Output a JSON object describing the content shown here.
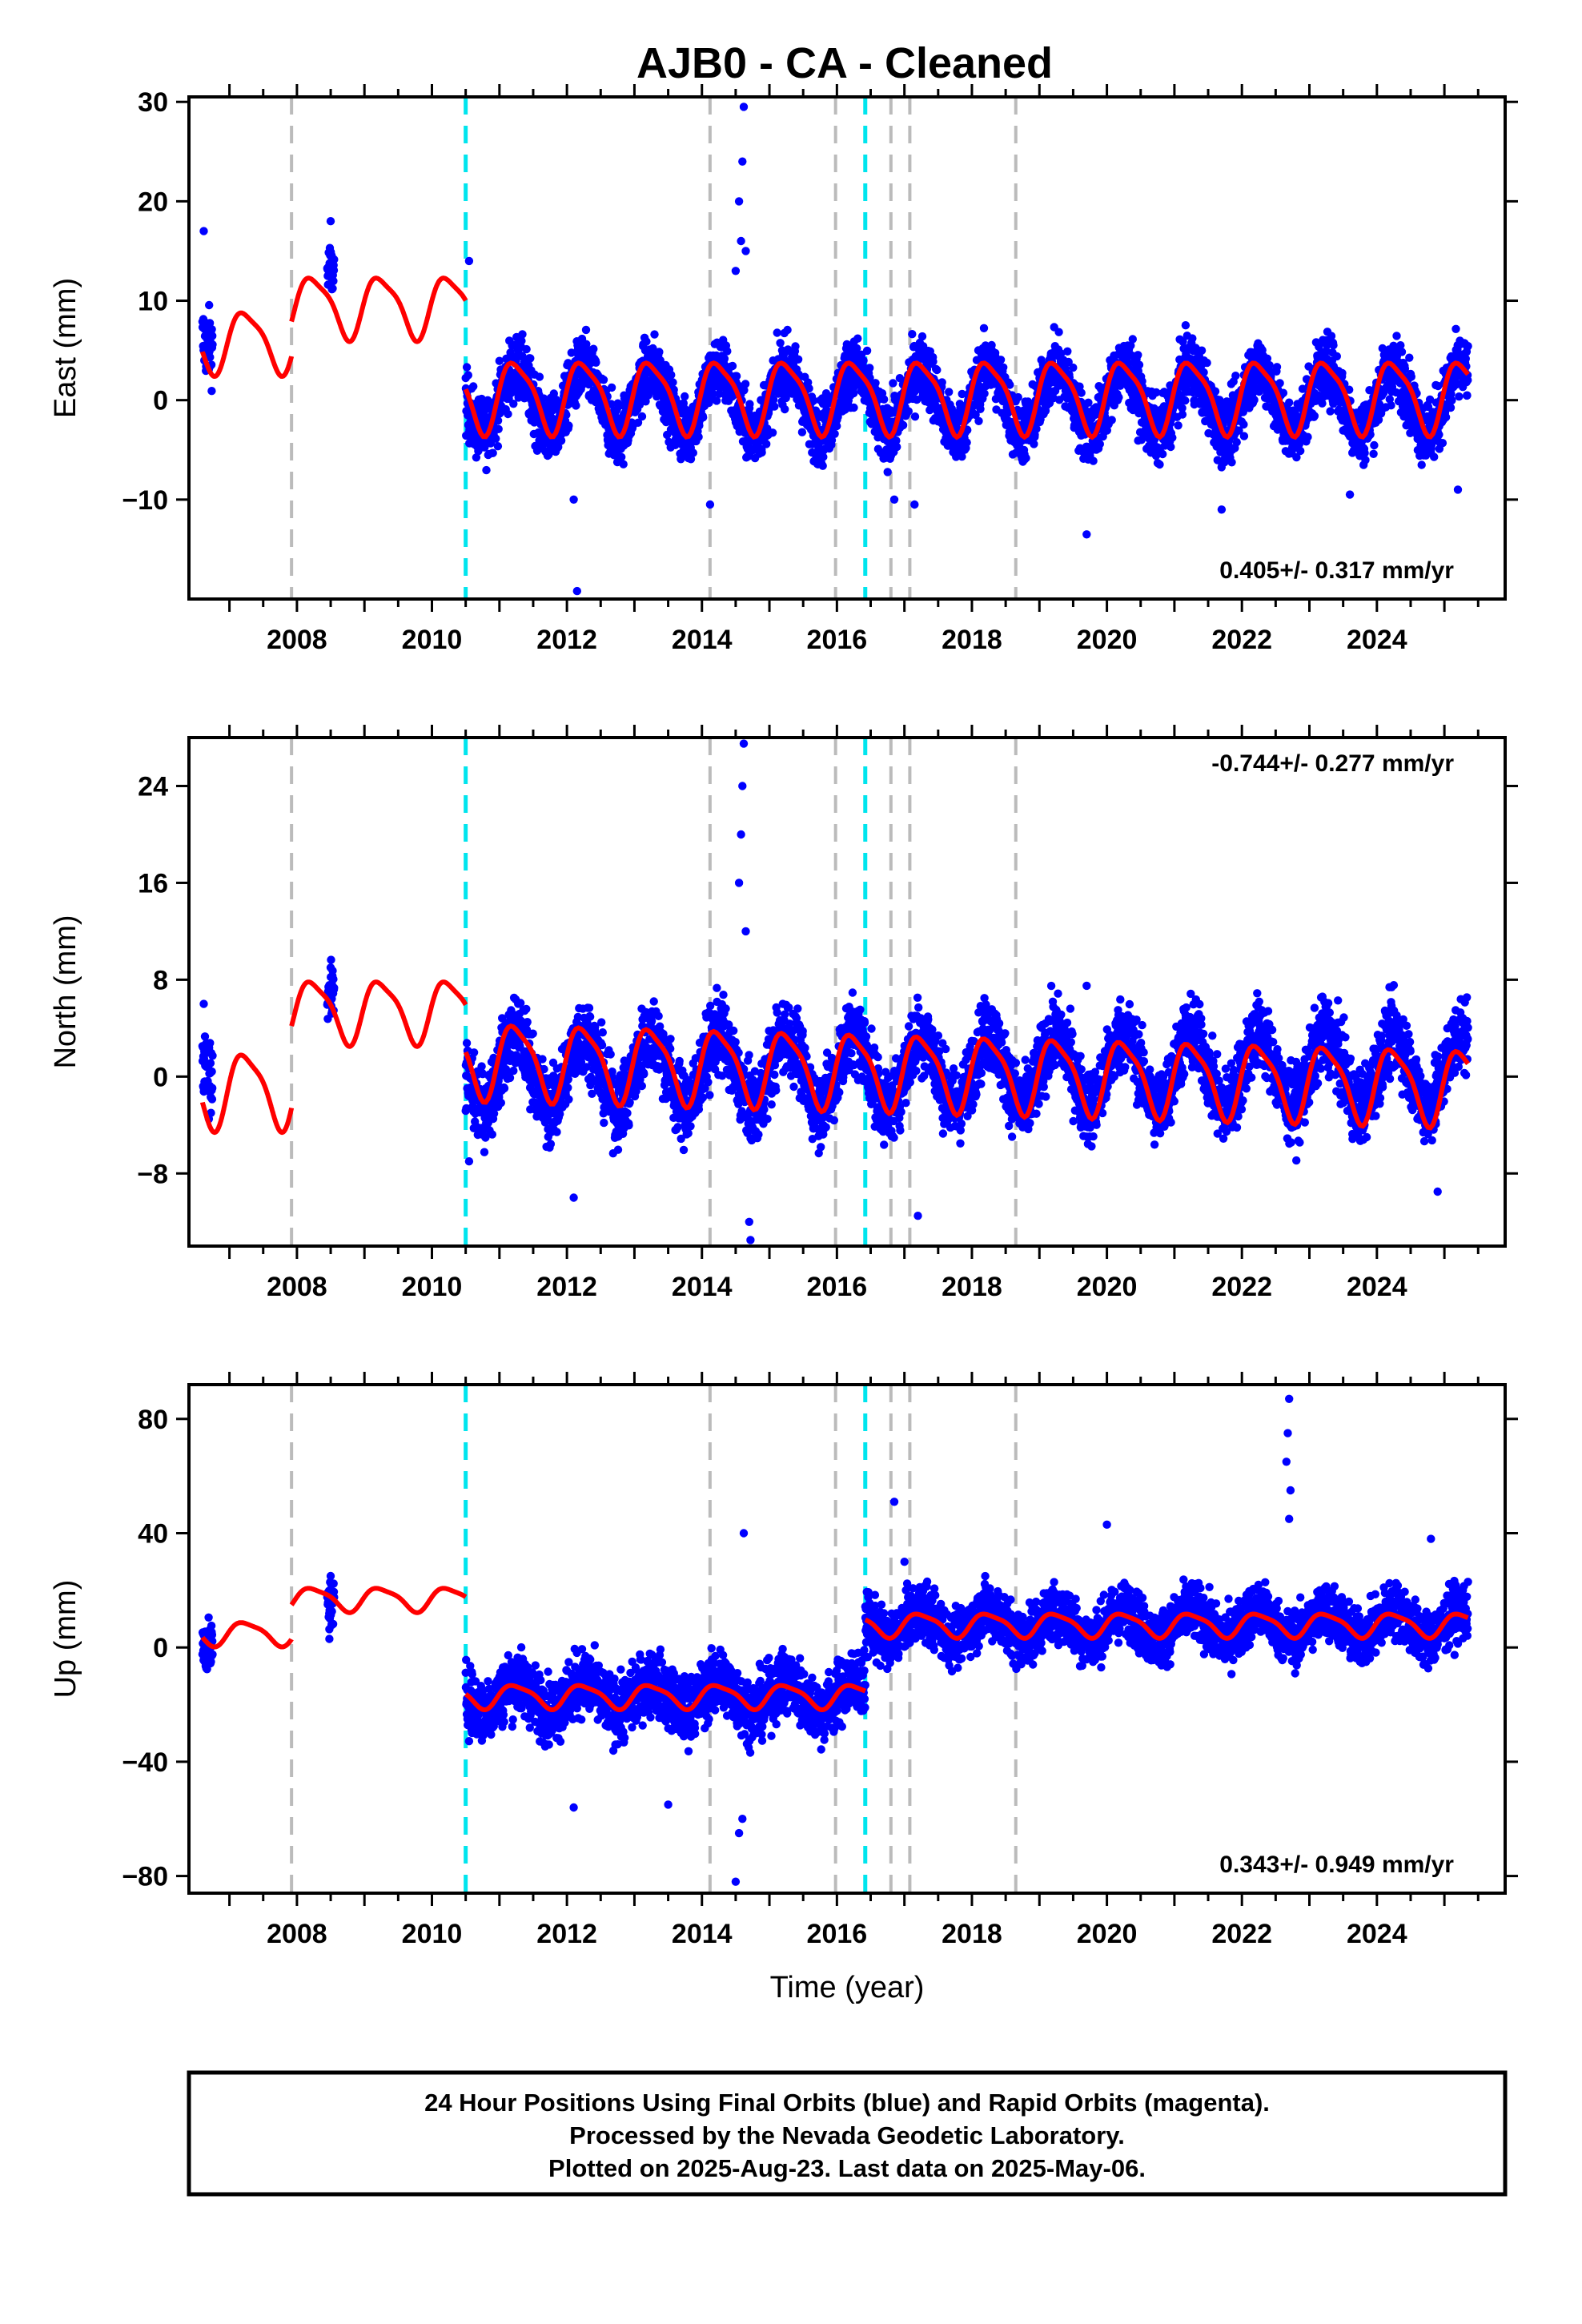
{
  "title": "AJB0  - CA - Cleaned",
  "footer_note": {
    "lines": [
      "24 Hour Positions Using Final Orbits (blue) and Rapid Orbits (magenta).",
      "Processed by the Nevada Geodetic Laboratory.",
      "Plotted on 2025-Aug-23. Last data on 2025-May-06."
    ]
  },
  "colors": {
    "points": "#0000ff",
    "model": "#ff0000",
    "equipment_change": "#bbbbbb",
    "earthquake": "#00e5ee",
    "frame": "#000000"
  },
  "chart_data": [
    {
      "type": "scatter",
      "panel": "east",
      "ylabel": "East (mm)",
      "xlabel": "",
      "xlim": [
        2006.4,
        2025.9
      ],
      "ylim": [
        -20,
        30.5
      ],
      "yticks": [
        30,
        20,
        10,
        0,
        -10
      ],
      "ytick_labels": [
        "30",
        "20",
        "10",
        "0",
        "−10"
      ],
      "xticks": [
        2008,
        2010,
        2012,
        2014,
        2016,
        2018,
        2020,
        2022,
        2024
      ],
      "xtick_labels": [
        "2008",
        "2010",
        "2012",
        "2014",
        "2016",
        "2018",
        "2020",
        "2022",
        "2024"
      ],
      "rate_label": "0.405+/- 0.317 mm/yr",
      "rate_position": "bottom-right",
      "series": [
        {
          "kind": "points",
          "segments": [
            {
              "start": 2006.6,
              "end": 2006.75,
              "baseline": 7,
              "amp": 1.5,
              "noise": 2.5
            },
            {
              "start": 2008.45,
              "end": 2008.55,
              "baseline": 13,
              "amp": 0,
              "noise": 2
            },
            {
              "start": 2010.5,
              "end": 2025.35,
              "baseline": 0,
              "amp": 3.2,
              "noise": 2.3
            }
          ],
          "outliers": [
            [
              2006.62,
              17
            ],
            [
              2008.5,
              18
            ],
            [
              2010.55,
              14
            ],
            [
              2012.1,
              -10
            ],
            [
              2012.15,
              -19.2
            ],
            [
              2014.12,
              -10.5
            ],
            [
              2014.62,
              29.5
            ],
            [
              2014.6,
              24
            ],
            [
              2014.55,
              20
            ],
            [
              2014.58,
              16
            ],
            [
              2014.65,
              15
            ],
            [
              2014.5,
              13
            ],
            [
              2016.85,
              -10
            ],
            [
              2017.15,
              -10.5
            ],
            [
              2019.7,
              -13.5
            ],
            [
              2021.7,
              -11
            ],
            [
              2023.6,
              -9.5
            ],
            [
              2025.2,
              -9
            ]
          ]
        },
        {
          "kind": "model",
          "segments": [
            {
              "start": 2006.6,
              "end": 2007.92,
              "baseline": 6,
              "amp": 3,
              "trend": 0
            },
            {
              "start": 2007.92,
              "end": 2010.5,
              "baseline": 9.5,
              "amp": 3,
              "trend": 0
            },
            {
              "start": 2010.5,
              "end": 2025.35,
              "baseline": 0.5,
              "amp": 3.5,
              "trend": 0.0
            }
          ]
        }
      ]
    },
    {
      "type": "scatter",
      "panel": "north",
      "ylabel": "North (mm)",
      "xlabel": "",
      "xlim": [
        2006.4,
        2025.9
      ],
      "ylim": [
        -14,
        28
      ],
      "yticks": [
        24,
        16,
        8,
        0,
        -8
      ],
      "ytick_labels": [
        "24",
        "16",
        "8",
        "0",
        "−8"
      ],
      "xticks": [
        2008,
        2010,
        2012,
        2014,
        2016,
        2018,
        2020,
        2022,
        2024
      ],
      "xtick_labels": [
        "2008",
        "2010",
        "2012",
        "2014",
        "2016",
        "2018",
        "2020",
        "2022",
        "2024"
      ],
      "rate_label": "-0.744+/- 0.277 mm/yr",
      "rate_position": "top-right",
      "series": [
        {
          "kind": "points",
          "segments": [
            {
              "start": 2006.6,
              "end": 2006.75,
              "baseline": 2,
              "amp": 2,
              "noise": 2
            },
            {
              "start": 2008.45,
              "end": 2008.55,
              "baseline": 7,
              "amp": 0,
              "noise": 1.5
            },
            {
              "start": 2010.5,
              "end": 2025.35,
              "baseline": 0.5,
              "amp": 3,
              "noise": 2.2
            }
          ],
          "outliers": [
            [
              2006.62,
              6
            ],
            [
              2008.5,
              9
            ],
            [
              2010.55,
              -7
            ],
            [
              2012.1,
              -10
            ],
            [
              2014.62,
              27.5
            ],
            [
              2014.6,
              24
            ],
            [
              2014.58,
              20
            ],
            [
              2014.55,
              16
            ],
            [
              2014.65,
              12
            ],
            [
              2014.7,
              -12
            ],
            [
              2014.72,
              -13.5
            ],
            [
              2017.2,
              -11.5
            ],
            [
              2019.7,
              7.5
            ],
            [
              2024.9,
              -9.5
            ]
          ]
        },
        {
          "kind": "model",
          "segments": [
            {
              "start": 2006.6,
              "end": 2007.92,
              "baseline": -1,
              "amp": 3,
              "trend": 0
            },
            {
              "start": 2007.92,
              "end": 2010.5,
              "baseline": 5.5,
              "amp": 2.5,
              "trend": 0
            },
            {
              "start": 2010.5,
              "end": 2025.35,
              "baseline": 1.5,
              "amp": 3,
              "trend": -0.15
            }
          ]
        }
      ]
    },
    {
      "type": "scatter",
      "panel": "up",
      "ylabel": "Up (mm)",
      "xlabel": "Time (year)",
      "xlim": [
        2006.4,
        2025.9
      ],
      "ylim": [
        -86,
        92
      ],
      "yticks": [
        80,
        40,
        0,
        -40,
        -80
      ],
      "ytick_labels": [
        "80",
        "40",
        "0",
        "−40",
        "−80"
      ],
      "xticks": [
        2008,
        2010,
        2012,
        2014,
        2016,
        2018,
        2020,
        2022,
        2024
      ],
      "xtick_labels": [
        "2008",
        "2010",
        "2012",
        "2014",
        "2016",
        "2018",
        "2020",
        "2022",
        "2024"
      ],
      "rate_label": "0.343+/- 0.949 mm/yr",
      "rate_position": "bottom-right",
      "series": [
        {
          "kind": "points",
          "segments": [
            {
              "start": 2006.6,
              "end": 2006.75,
              "baseline": 3,
              "amp": 3,
              "noise": 6
            },
            {
              "start": 2008.45,
              "end": 2008.55,
              "baseline": 15,
              "amp": 0,
              "noise": 6
            },
            {
              "start": 2010.5,
              "end": 2016.42,
              "baseline": -17,
              "amp": 5,
              "noise": 8
            },
            {
              "start": 2016.42,
              "end": 2025.35,
              "baseline": 8,
              "amp": 5,
              "noise": 7
            }
          ],
          "outliers": [
            [
              2008.5,
              25
            ],
            [
              2008.48,
              3
            ],
            [
              2012.1,
              -56
            ],
            [
              2013.5,
              -55
            ],
            [
              2014.62,
              40
            ],
            [
              2014.55,
              -65
            ],
            [
              2014.5,
              -82
            ],
            [
              2014.6,
              -60
            ],
            [
              2016.85,
              51
            ],
            [
              2017.0,
              30
            ],
            [
              2020.0,
              43
            ],
            [
              2022.7,
              87
            ],
            [
              2022.68,
              75
            ],
            [
              2022.66,
              65
            ],
            [
              2022.72,
              55
            ],
            [
              2022.7,
              45
            ],
            [
              2024.8,
              38
            ]
          ]
        },
        {
          "kind": "model",
          "segments": [
            {
              "start": 2006.6,
              "end": 2007.92,
              "baseline": 5,
              "amp": 4,
              "trend": 0
            },
            {
              "start": 2007.92,
              "end": 2010.5,
              "baseline": 17,
              "amp": 4,
              "trend": 0
            },
            {
              "start": 2010.5,
              "end": 2016.42,
              "baseline": -17,
              "amp": 4,
              "trend": 0
            },
            {
              "start": 2016.42,
              "end": 2025.35,
              "baseline": 8,
              "amp": 4,
              "trend": 0
            }
          ]
        }
      ]
    }
  ],
  "event_lines": {
    "equipment_change": [
      2007.92,
      2014.12,
      2015.98,
      2016.8,
      2017.08,
      2018.65
    ],
    "earthquake": [
      2010.5,
      2016.42
    ]
  }
}
